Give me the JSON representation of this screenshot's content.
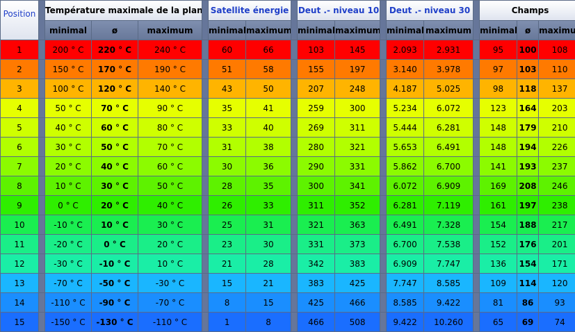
{
  "headers": {
    "position": "Position",
    "temperature": "Température maximale de la planète",
    "satellite": "Satellite énergie",
    "deut10": "Deut .- niveau 10",
    "deut30": "Deut .- niveau 30",
    "champs": "Champs",
    "sub_minimal": "minimal",
    "sub_avg": "ø",
    "sub_maximum": "maximum"
  },
  "row_colors": [
    "#ff0000",
    "#ff7a00",
    "#ffb400",
    "#e6ff00",
    "#cfff00",
    "#b2ff00",
    "#8cfb00",
    "#5ef200",
    "#2fee00",
    "#1aee50",
    "#1aee88",
    "#1aeea6",
    "#1ab6ff",
    "#1a8eff",
    "#1a6eff"
  ],
  "rows": [
    {
      "pos": "1",
      "t_min": "200 ° C",
      "t_avg": "220 ° C",
      "t_max": "240 ° C",
      "sat_min": "60",
      "sat_max": "66",
      "d10_min": "103",
      "d10_max": "145",
      "d30_min": "2.093",
      "d30_max": "2.931",
      "c_min": "95",
      "c_avg": "100",
      "c_max": "108"
    },
    {
      "pos": "2",
      "t_min": "150 ° C",
      "t_avg": "170 ° C",
      "t_max": "190 ° C",
      "sat_min": "51",
      "sat_max": "58",
      "d10_min": "155",
      "d10_max": "197",
      "d30_min": "3.140",
      "d30_max": "3.978",
      "c_min": "97",
      "c_avg": "103",
      "c_max": "110"
    },
    {
      "pos": "3",
      "t_min": "100 ° C",
      "t_avg": "120 ° C",
      "t_max": "140 ° C",
      "sat_min": "43",
      "sat_max": "50",
      "d10_min": "207",
      "d10_max": "248",
      "d30_min": "4.187",
      "d30_max": "5.025",
      "c_min": "98",
      "c_avg": "118",
      "c_max": "137"
    },
    {
      "pos": "4",
      "t_min": "50 ° C",
      "t_avg": "70 ° C",
      "t_max": "90 ° C",
      "sat_min": "35",
      "sat_max": "41",
      "d10_min": "259",
      "d10_max": "300",
      "d30_min": "5.234",
      "d30_max": "6.072",
      "c_min": "123",
      "c_avg": "164",
      "c_max": "203"
    },
    {
      "pos": "5",
      "t_min": "40 ° C",
      "t_avg": "60 ° C",
      "t_max": "80 ° C",
      "sat_min": "33",
      "sat_max": "40",
      "d10_min": "269",
      "d10_max": "311",
      "d30_min": "5.444",
      "d30_max": "6.281",
      "c_min": "148",
      "c_avg": "179",
      "c_max": "210"
    },
    {
      "pos": "6",
      "t_min": "30 ° C",
      "t_avg": "50 ° C",
      "t_max": "70 ° C",
      "sat_min": "31",
      "sat_max": "38",
      "d10_min": "280",
      "d10_max": "321",
      "d30_min": "5.653",
      "d30_max": "6.491",
      "c_min": "148",
      "c_avg": "194",
      "c_max": "226"
    },
    {
      "pos": "7",
      "t_min": "20 ° C",
      "t_avg": "40 ° C",
      "t_max": "60 ° C",
      "sat_min": "30",
      "sat_max": "36",
      "d10_min": "290",
      "d10_max": "331",
      "d30_min": "5.862",
      "d30_max": "6.700",
      "c_min": "141",
      "c_avg": "193",
      "c_max": "237"
    },
    {
      "pos": "8",
      "t_min": "10 ° C",
      "t_avg": "30 ° C",
      "t_max": "50 ° C",
      "sat_min": "28",
      "sat_max": "35",
      "d10_min": "300",
      "d10_max": "341",
      "d30_min": "6.072",
      "d30_max": "6.909",
      "c_min": "169",
      "c_avg": "208",
      "c_max": "246"
    },
    {
      "pos": "9",
      "t_min": "0 ° C",
      "t_avg": "20 ° C",
      "t_max": "40 ° C",
      "sat_min": "26",
      "sat_max": "33",
      "d10_min": "311",
      "d10_max": "352",
      "d30_min": "6.281",
      "d30_max": "7.119",
      "c_min": "161",
      "c_avg": "197",
      "c_max": "238"
    },
    {
      "pos": "10",
      "t_min": "-10 ° C",
      "t_avg": "10 ° C",
      "t_max": "30 ° C",
      "sat_min": "25",
      "sat_max": "31",
      "d10_min": "321",
      "d10_max": "363",
      "d30_min": "6.491",
      "d30_max": "7.328",
      "c_min": "154",
      "c_avg": "188",
      "c_max": "217"
    },
    {
      "pos": "11",
      "t_min": "-20 ° C",
      "t_avg": "0 ° C",
      "t_max": "20 ° C",
      "sat_min": "23",
      "sat_max": "30",
      "d10_min": "331",
      "d10_max": "373",
      "d30_min": "6.700",
      "d30_max": "7.538",
      "c_min": "152",
      "c_avg": "176",
      "c_max": "201"
    },
    {
      "pos": "12",
      "t_min": "-30 ° C",
      "t_avg": "-10 ° C",
      "t_max": "10 ° C",
      "sat_min": "21",
      "sat_max": "28",
      "d10_min": "342",
      "d10_max": "383",
      "d30_min": "6.909",
      "d30_max": "7.747",
      "c_min": "136",
      "c_avg": "154",
      "c_max": "171"
    },
    {
      "pos": "13",
      "t_min": "-70 ° C",
      "t_avg": "-50 ° C",
      "t_max": "-30 ° C",
      "sat_min": "15",
      "sat_max": "21",
      "d10_min": "383",
      "d10_max": "425",
      "d30_min": "7.747",
      "d30_max": "8.585",
      "c_min": "109",
      "c_avg": "114",
      "c_max": "120"
    },
    {
      "pos": "14",
      "t_min": "-110 ° C",
      "t_avg": "-90 ° C",
      "t_max": "-70 ° C",
      "sat_min": "8",
      "sat_max": "15",
      "d10_min": "425",
      "d10_max": "466",
      "d30_min": "8.585",
      "d30_max": "9.422",
      "c_min": "81",
      "c_avg": "86",
      "c_max": "93"
    },
    {
      "pos": "15",
      "t_min": "-150 ° C",
      "t_avg": "-130 ° C",
      "t_max": "-110 ° C",
      "sat_min": "1",
      "sat_max": "8",
      "d10_min": "466",
      "d10_max": "508",
      "d30_min": "9.422",
      "d30_max": "10.260",
      "c_min": "65",
      "c_avg": "69",
      "c_max": "74"
    }
  ]
}
